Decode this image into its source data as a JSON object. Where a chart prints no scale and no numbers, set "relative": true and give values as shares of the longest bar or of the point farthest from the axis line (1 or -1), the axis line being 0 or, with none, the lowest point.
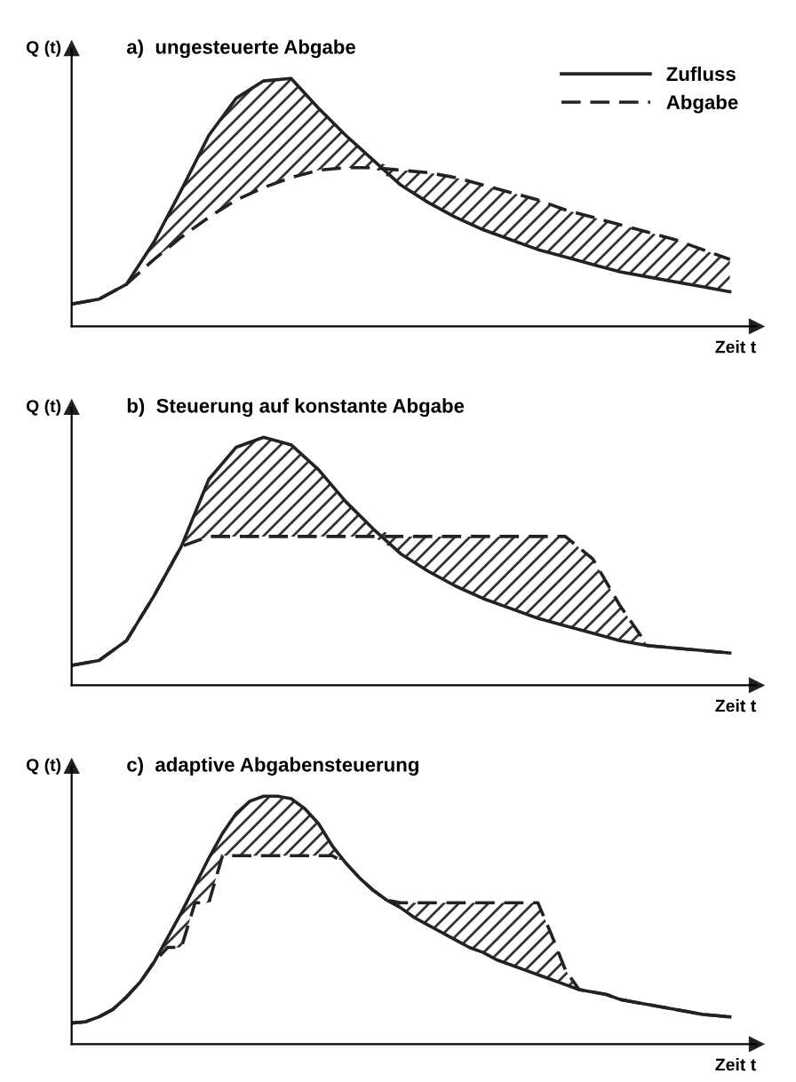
{
  "chart_data": [
    {
      "type": "line",
      "relative": true,
      "title": "a)  ungesteuerte Abgabe",
      "ylabel": "Q (t)",
      "xlabel": "Zeit t",
      "legend": "top right",
      "marker": "none",
      "grid": false,
      "categories": [
        null,
        null,
        null,
        null,
        null,
        null,
        null,
        null,
        null,
        null,
        null,
        null,
        null,
        null,
        null,
        null,
        null,
        null,
        null,
        null,
        null,
        null,
        null,
        null,
        null
      ],
      "series": [
        {
          "name": "Zufluss",
          "color": "#222222",
          "line_style": "solid",
          "values": [
            0.09,
            0.11,
            0.17,
            0.34,
            0.55,
            0.77,
            0.92,
            0.99,
            1.0,
            0.88,
            0.77,
            0.67,
            0.57,
            0.5,
            0.44,
            0.39,
            0.35,
            0.31,
            0.28,
            0.25,
            0.22,
            0.2,
            0.18,
            0.16,
            0.14
          ]
        },
        {
          "name": "Abgabe",
          "color": "#222222",
          "line_style": "dashed",
          "values": [
            0.09,
            0.11,
            0.17,
            0.27,
            0.36,
            0.44,
            0.51,
            0.56,
            0.6,
            0.63,
            0.64,
            0.64,
            0.63,
            0.62,
            0.6,
            0.57,
            0.54,
            0.51,
            0.47,
            0.44,
            0.41,
            0.38,
            0.35,
            0.31,
            0.27
          ],
          "lower": [
            0.09,
            0.11,
            0.17,
            0.27,
            0.36,
            0.44,
            0.51,
            0.56,
            0.6,
            0.63,
            0.64,
            0.64,
            0.57,
            0.5,
            0.44,
            0.39,
            0.35,
            0.31,
            0.28,
            0.25,
            0.22,
            0.2,
            0.18,
            0.16,
            0.14
          ],
          "upper": [
            0.09,
            0.11,
            0.17,
            0.34,
            0.55,
            0.77,
            0.92,
            0.99,
            1.0,
            0.88,
            0.77,
            0.67,
            0.63,
            0.62,
            0.6,
            0.57,
            0.54,
            0.51,
            0.47,
            0.44,
            0.41,
            0.38,
            0.35,
            0.31,
            0.27
          ]
        }
      ]
    },
    {
      "type": "line",
      "relative": true,
      "title": "b)  Steuerung auf konstante Abgabe",
      "ylabel": "Q (t)",
      "xlabel": "Zeit t",
      "marker": "none",
      "grid": false,
      "categories": [
        null,
        null,
        null,
        null,
        null,
        null,
        null,
        null,
        null,
        null,
        null,
        null,
        null,
        null,
        null,
        null,
        null,
        null,
        null,
        null,
        null,
        null,
        null,
        null,
        null
      ],
      "series": [
        {
          "color": "#222222",
          "line_style": "solid",
          "values": [
            0.08,
            0.1,
            0.18,
            0.36,
            0.56,
            0.83,
            0.96,
            1.0,
            0.97,
            0.87,
            0.74,
            0.63,
            0.53,
            0.46,
            0.4,
            0.35,
            0.31,
            0.27,
            0.24,
            0.21,
            0.18,
            0.16,
            0.15,
            0.14,
            0.13
          ]
        },
        {
          "color": "#222222",
          "line_style": "dashed",
          "values": [
            0.08,
            0.1,
            0.18,
            0.36,
            0.56,
            0.6,
            0.6,
            0.6,
            0.6,
            0.6,
            0.6,
            0.6,
            0.6,
            0.6,
            0.6,
            0.6,
            0.6,
            0.6,
            0.6,
            0.51,
            0.32,
            0.16,
            0.15,
            0.14,
            0.13
          ],
          "lower": [
            0.08,
            0.1,
            0.18,
            0.36,
            0.56,
            0.6,
            0.6,
            0.6,
            0.6,
            0.6,
            0.6,
            0.6,
            0.53,
            0.46,
            0.4,
            0.35,
            0.31,
            0.27,
            0.24,
            0.21,
            0.18,
            0.16,
            0.15,
            0.14,
            0.13
          ],
          "upper": [
            0.08,
            0.1,
            0.18,
            0.36,
            0.56,
            0.83,
            0.96,
            1.0,
            0.97,
            0.87,
            0.74,
            0.63,
            0.6,
            0.6,
            0.6,
            0.6,
            0.6,
            0.6,
            0.6,
            0.51,
            0.32,
            0.16,
            0.15,
            0.14,
            0.13
          ]
        }
      ]
    },
    {
      "type": "line",
      "relative": true,
      "title": "c)  adaptive Abgabensteuerung",
      "ylabel": "Q (t)",
      "xlabel": "Zeit t",
      "marker": "none",
      "grid": false,
      "categories": [
        null,
        null,
        null,
        null,
        null,
        null,
        null,
        null,
        null,
        null,
        null,
        null,
        null,
        null,
        null,
        null,
        null,
        null,
        null,
        null,
        null,
        null,
        null,
        null,
        null,
        null,
        null,
        null,
        null,
        null,
        null,
        null,
        null,
        null,
        null,
        null,
        null,
        null,
        null,
        null,
        null,
        null,
        null,
        null,
        null,
        null,
        null,
        null,
        null
      ],
      "series": [
        {
          "color": "#222222",
          "line_style": "solid",
          "values": [
            0.085,
            0.09,
            0.11,
            0.14,
            0.19,
            0.25,
            0.33,
            0.43,
            0.53,
            0.64,
            0.75,
            0.85,
            0.93,
            0.98,
            1.0,
            1.0,
            0.99,
            0.95,
            0.89,
            0.8,
            0.73,
            0.67,
            0.62,
            0.58,
            0.55,
            0.51,
            0.48,
            0.45,
            0.42,
            0.39,
            0.37,
            0.34,
            0.32,
            0.3,
            0.28,
            0.26,
            0.24,
            0.22,
            0.21,
            0.2,
            0.18,
            0.17,
            0.16,
            0.15,
            0.14,
            0.13,
            0.12,
            0.115,
            0.11
          ]
        },
        {
          "color": "#222222",
          "line_style": "dashed",
          "values": [
            0.085,
            0.09,
            0.11,
            0.14,
            0.19,
            0.25,
            0.33,
            0.39,
            0.39,
            0.57,
            0.57,
            0.76,
            0.76,
            0.76,
            0.76,
            0.76,
            0.76,
            0.76,
            0.76,
            0.76,
            0.73,
            0.67,
            0.62,
            0.58,
            0.57,
            0.57,
            0.57,
            0.57,
            0.57,
            0.57,
            0.57,
            0.57,
            0.57,
            0.57,
            0.57,
            0.44,
            0.3,
            0.22,
            0.21,
            0.2,
            0.18,
            0.17,
            0.16,
            0.15,
            0.14,
            0.13,
            0.12,
            0.115,
            0.11
          ],
          "lower": [
            0.085,
            0.09,
            0.11,
            0.14,
            0.19,
            0.25,
            0.33,
            0.39,
            0.39,
            0.57,
            0.57,
            0.76,
            0.76,
            0.76,
            0.76,
            0.76,
            0.76,
            0.76,
            0.76,
            0.76,
            0.73,
            0.67,
            0.62,
            0.58,
            0.55,
            0.51,
            0.48,
            0.45,
            0.42,
            0.39,
            0.37,
            0.34,
            0.32,
            0.3,
            0.28,
            0.26,
            0.24,
            0.22,
            0.21,
            0.2,
            0.18,
            0.17,
            0.16,
            0.15,
            0.14,
            0.13,
            0.12,
            0.115,
            0.11
          ],
          "upper": [
            0.085,
            0.09,
            0.11,
            0.14,
            0.19,
            0.25,
            0.33,
            0.43,
            0.53,
            0.64,
            0.75,
            0.85,
            0.93,
            0.98,
            1.0,
            1.0,
            0.99,
            0.95,
            0.89,
            0.8,
            0.73,
            0.67,
            0.62,
            0.58,
            0.57,
            0.57,
            0.57,
            0.57,
            0.57,
            0.57,
            0.57,
            0.57,
            0.57,
            0.57,
            0.57,
            0.44,
            0.3,
            0.22,
            0.21,
            0.2,
            0.18,
            0.17,
            0.16,
            0.15,
            0.14,
            0.13,
            0.12,
            0.115,
            0.11
          ]
        }
      ]
    }
  ]
}
